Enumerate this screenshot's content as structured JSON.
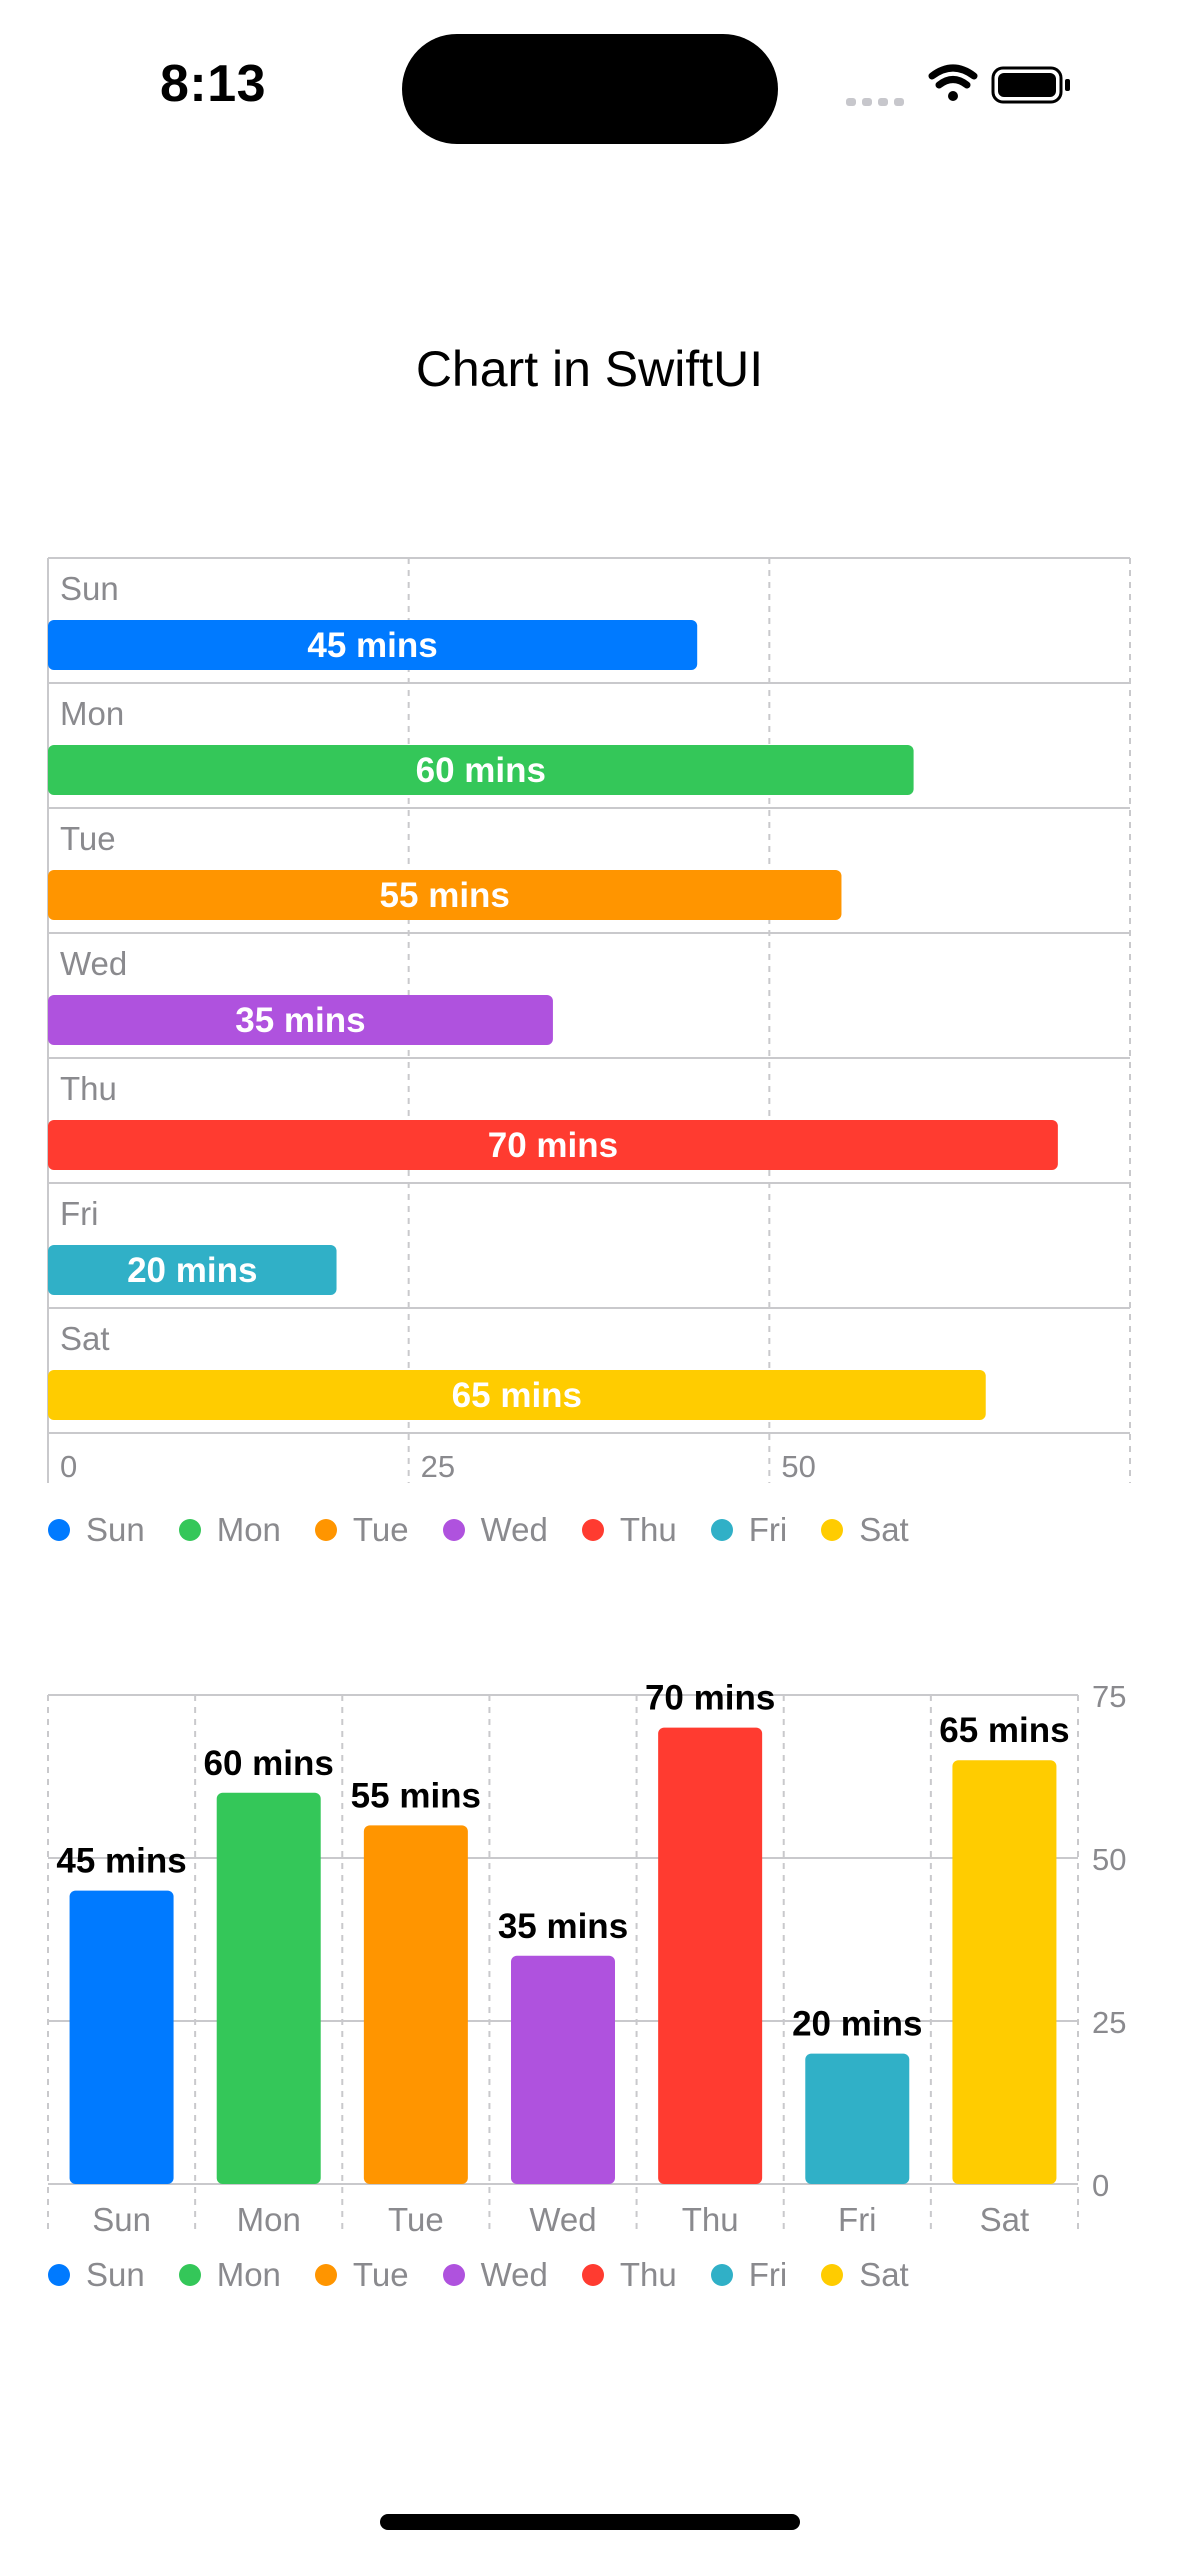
{
  "status_bar": {
    "time": "8:13"
  },
  "page": {
    "title": "Chart in SwiftUI"
  },
  "colors": {
    "Sun": "#007AFF",
    "Mon": "#34C759",
    "Tue": "#FF9500",
    "Wed": "#AF52DE",
    "Thu": "#FF3B30",
    "Fri": "#30B0C7",
    "Sat": "#FFCC00",
    "grid": "#c9c9cc",
    "axis_text": "#8a8a8e"
  },
  "legend": [
    "Sun",
    "Mon",
    "Tue",
    "Wed",
    "Thu",
    "Fri",
    "Sat"
  ],
  "chart_data": [
    {
      "type": "bar",
      "orientation": "horizontal",
      "categories": [
        "Sun",
        "Mon",
        "Tue",
        "Wed",
        "Thu",
        "Fri",
        "Sat"
      ],
      "values": [
        45,
        60,
        55,
        35,
        70,
        20,
        65
      ],
      "data_labels": [
        "45 mins",
        "60 mins",
        "55 mins",
        "35 mins",
        "70 mins",
        "20 mins",
        "65 mins"
      ],
      "x_ticks": [
        "0",
        "25",
        "50"
      ],
      "xlim": [
        0,
        75
      ],
      "grid": true,
      "legend": "bottom-left"
    },
    {
      "type": "bar",
      "orientation": "vertical",
      "categories": [
        "Sun",
        "Mon",
        "Tue",
        "Wed",
        "Thu",
        "Fri",
        "Sat"
      ],
      "values": [
        45,
        60,
        55,
        35,
        70,
        20,
        65
      ],
      "data_labels": [
        "45 mins",
        "60 mins",
        "55 mins",
        "35 mins",
        "70 mins",
        "20 mins",
        "65 mins"
      ],
      "y_ticks": [
        "0",
        "25",
        "50",
        "75"
      ],
      "ylim": [
        0,
        75
      ],
      "grid": true,
      "legend": "bottom-left"
    }
  ]
}
